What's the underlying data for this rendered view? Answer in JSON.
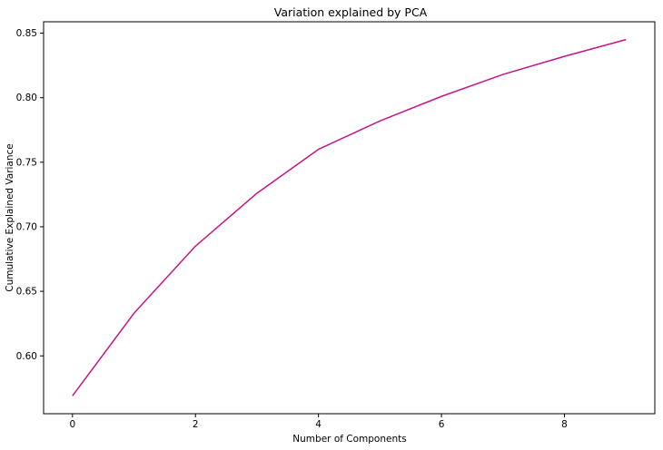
{
  "chart_data": {
    "type": "line",
    "title": "Variation explained by PCA",
    "xlabel": "Number of Components",
    "ylabel": "Cumulative Explained Variance",
    "x": [
      0,
      1,
      2,
      3,
      4,
      5,
      6,
      7,
      8,
      9
    ],
    "series": [
      {
        "values": [
          0.569,
          0.633,
          0.685,
          0.726,
          0.76,
          0.782,
          0.801,
          0.818,
          0.832,
          0.845
        ],
        "color": "#c71585"
      }
    ],
    "xlim": [
      -0.47,
      9.47
    ],
    "ylim": [
      0.5552,
      0.8588
    ],
    "xticks": [
      0,
      2,
      4,
      6,
      8
    ],
    "xtick_labels": [
      "0",
      "2",
      "4",
      "6",
      "8"
    ],
    "yticks": [
      0.6,
      0.65,
      0.7,
      0.75,
      0.8,
      0.85
    ],
    "ytick_labels": [
      "0.60",
      "0.65",
      "0.70",
      "0.75",
      "0.80",
      "0.85"
    ],
    "grid": false,
    "legend": false
  }
}
